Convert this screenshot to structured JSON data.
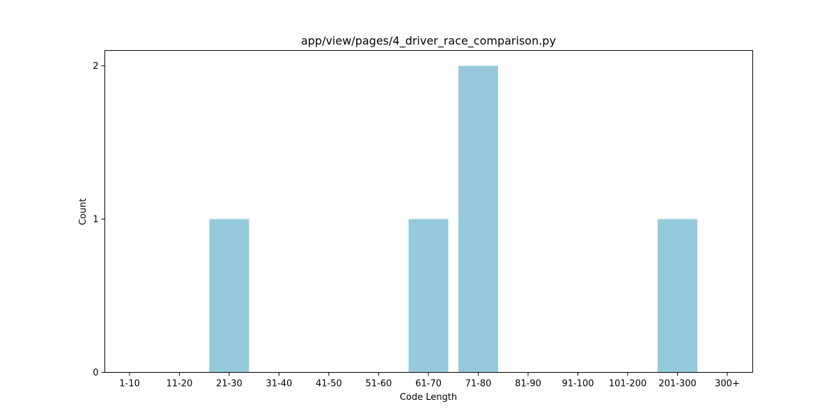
{
  "chart_data": {
    "type": "bar",
    "title": "app/view/pages/4_driver_race_comparison.py",
    "xlabel": "Code Length",
    "ylabel": "Count",
    "categories": [
      "1-10",
      "11-20",
      "21-30",
      "31-40",
      "41-50",
      "51-60",
      "61-70",
      "71-80",
      "81-90",
      "91-100",
      "101-200",
      "201-300",
      "300+"
    ],
    "values": [
      0,
      0,
      1,
      0,
      0,
      0,
      1,
      2,
      0,
      0,
      0,
      1,
      0
    ],
    "yticks": [
      "0",
      "1",
      "2"
    ],
    "ylim": [
      0,
      2.1
    ],
    "grid": false,
    "legend": "none",
    "bar_color": "#96c9dc"
  }
}
